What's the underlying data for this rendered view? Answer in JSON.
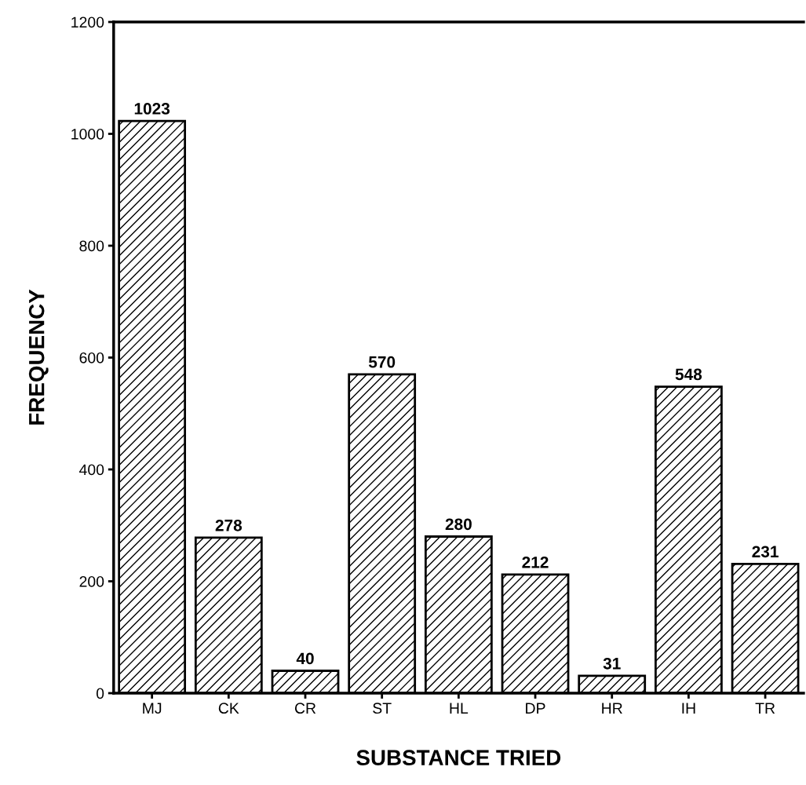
{
  "chart_data": {
    "type": "bar",
    "xlabel": "SUBSTANCE TRIED",
    "ylabel": "FREQUENCY",
    "categories": [
      "MJ",
      "CK",
      "CR",
      "ST",
      "HL",
      "DP",
      "HR",
      "IH",
      "TR"
    ],
    "values": [
      1023,
      278,
      40,
      570,
      280,
      212,
      31,
      548,
      231
    ],
    "color": "#000000",
    "data_labels": true,
    "grid": false,
    "ylim": [
      0,
      1200
    ],
    "yticks": [
      0,
      200,
      400,
      600,
      800,
      1000,
      1200
    ]
  }
}
